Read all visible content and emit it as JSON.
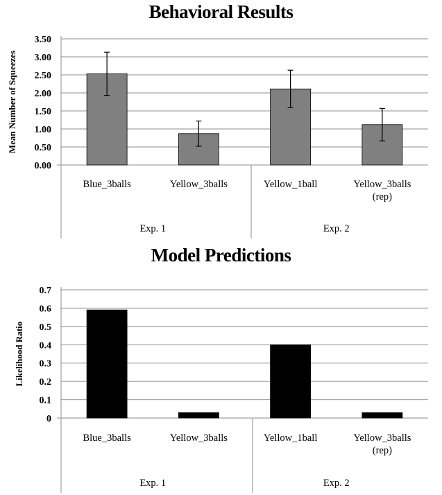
{
  "chart_data": [
    {
      "type": "bar",
      "title": "Behavioral Results",
      "ylabel": "Mean Number of Squeezes",
      "xlabel": "",
      "ylim": [
        0,
        3.5
      ],
      "yticks": [
        "0.00",
        "0.50",
        "1.00",
        "1.50",
        "2.00",
        "2.50",
        "3.00",
        "3.50"
      ],
      "tick_step": 0.5,
      "categories": [
        [
          "Blue_3balls"
        ],
        [
          "Yellow_3balls"
        ],
        [
          "Yellow_1ball"
        ],
        [
          "Yellow_3balls",
          "(rep)"
        ]
      ],
      "groups": [
        {
          "label": "Exp. 1",
          "span": 2
        },
        {
          "label": "Exp. 2",
          "span": 2
        }
      ],
      "values": [
        2.53,
        0.87,
        2.11,
        1.12
      ],
      "errors": [
        0.6,
        0.35,
        0.52,
        0.45
      ],
      "bar_color": "#808080",
      "grid": true
    },
    {
      "type": "bar",
      "title": "Model Predictions",
      "ylabel": "Likelihood Ratio",
      "xlabel": "",
      "ylim": [
        0,
        0.7
      ],
      "yticks": [
        "0",
        "0.1",
        "0.2",
        "0.3",
        "0.4",
        "0.5",
        "0.6",
        "0.7"
      ],
      "tick_step": 0.1,
      "categories": [
        [
          "Blue_3balls"
        ],
        [
          "Yellow_3balls"
        ],
        [
          "Yellow_1ball"
        ],
        [
          "Yellow_3balls",
          "(rep)"
        ]
      ],
      "groups": [
        {
          "label": "Exp. 1",
          "span": 2
        },
        {
          "label": "Exp. 2",
          "span": 2
        }
      ],
      "values": [
        0.59,
        0.03,
        0.4,
        0.03
      ],
      "bar_color": "#000000",
      "grid": true
    }
  ]
}
